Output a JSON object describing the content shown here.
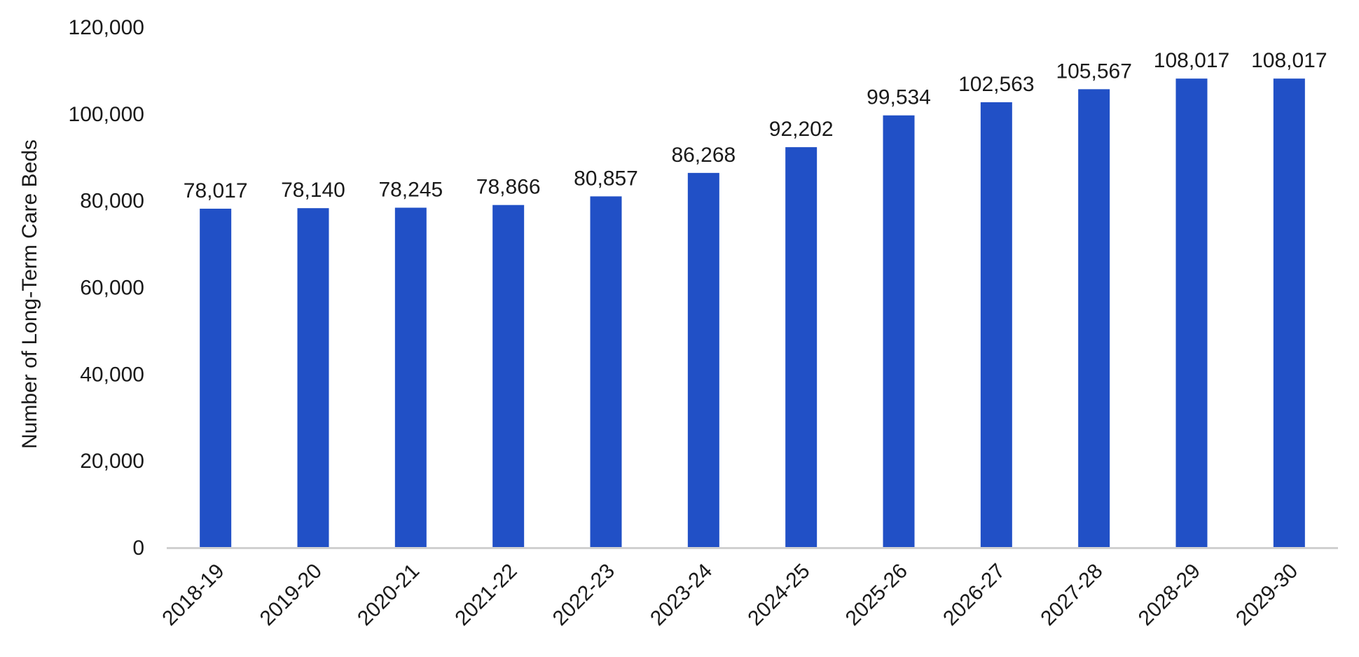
{
  "chart_data": {
    "type": "bar",
    "title": "",
    "xlabel": "",
    "ylabel": "Number of Long-Term Care Beds",
    "categories": [
      "2018-19",
      "2019-20",
      "2020-21",
      "2021-22",
      "2022-23",
      "2023-24",
      "2024-25",
      "2025-26",
      "2026-27",
      "2027-28",
      "2028-29",
      "2029-30"
    ],
    "values": [
      78017,
      78140,
      78245,
      78866,
      80857,
      86268,
      92202,
      99534,
      102563,
      105567,
      108017,
      108017
    ],
    "data_labels": [
      "78,017",
      "78,140",
      "78,245",
      "78,866",
      "80,857",
      "86,268",
      "92,202",
      "99,534",
      "102,563",
      "105,567",
      "108,017",
      "108,017"
    ],
    "ylim": [
      0,
      120000
    ],
    "yticks": [
      0,
      20000,
      40000,
      60000,
      80000,
      100000,
      120000
    ],
    "ytick_labels": [
      "0",
      "20,000",
      "40,000",
      "60,000",
      "80,000",
      "100,000",
      "120,000"
    ],
    "grid": false,
    "legend": "none",
    "colors": {
      "bar": "#2150c6",
      "axis": "#d0d0d0",
      "text": "#1a1a1a"
    }
  }
}
